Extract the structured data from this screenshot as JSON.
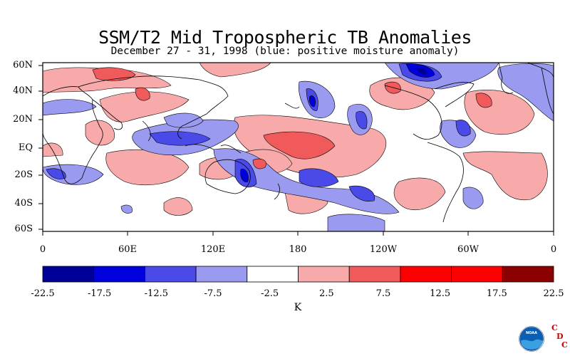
{
  "title": "SSM/T2 Mid Tropospheric TB Anomalies",
  "subtitle": "December 27 - 31, 1998 (blue: positive moisture anomaly)",
  "lat_labels": [
    "60N",
    "40N",
    "20N",
    "EQ",
    "20S",
    "40S",
    "60S"
  ],
  "lon_labels": [
    "0",
    "60E",
    "120E",
    "180",
    "120W",
    "60W",
    "0"
  ],
  "colorbar": {
    "ticks": [
      "-22.5",
      "-17.5",
      "-12.5",
      "-7.5",
      "-2.5",
      "2.5",
      "7.5",
      "12.5",
      "17.5",
      "22.5"
    ],
    "colors": [
      "#000099",
      "#0000dd",
      "#4a4ae8",
      "#9a9af0",
      "#ffffff",
      "#f8aaaa",
      "#f05a5a",
      "#ff0000",
      "#ff0000",
      "#8b0000"
    ],
    "unit": "K"
  },
  "logo": {
    "agency": "NOAA",
    "letters": [
      "C",
      "D",
      "C"
    ]
  }
}
